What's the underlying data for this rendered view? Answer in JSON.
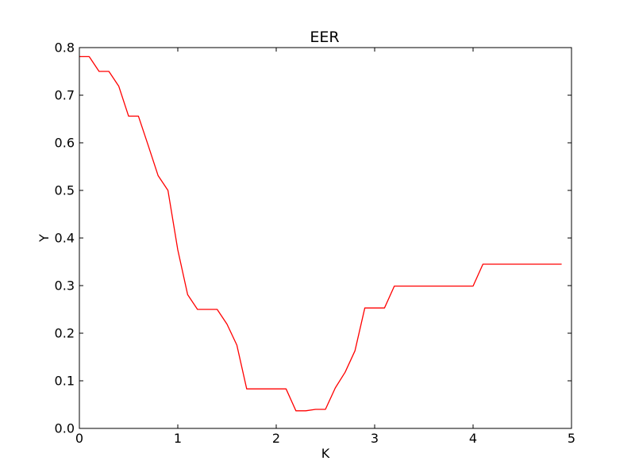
{
  "chart_data": {
    "type": "line",
    "title": "EER",
    "xlabel": "K",
    "ylabel": "Y",
    "xlim": [
      0,
      5
    ],
    "ylim": [
      0,
      0.8
    ],
    "grid": false,
    "x_ticks": [
      0,
      1,
      2,
      3,
      4,
      5
    ],
    "x_tick_labels": [
      "0",
      "1",
      "2",
      "3",
      "4",
      "5"
    ],
    "y_ticks": [
      0,
      0.1,
      0.2,
      0.3,
      0.4,
      0.5,
      0.6,
      0.7,
      0.8
    ],
    "y_tick_labels": [
      "0.0",
      "0.1",
      "0.2",
      "0.3",
      "0.4",
      "0.5",
      "0.6",
      "0.7",
      "0.8"
    ],
    "series": [
      {
        "color": "#ff0000",
        "x": [
          0,
          0.1,
          0.2,
          0.3,
          0.4,
          0.5,
          0.6,
          0.7,
          0.8,
          0.9,
          1.0,
          1.1,
          1.2,
          1.3,
          1.4,
          1.5,
          1.6,
          1.7,
          1.8,
          1.9,
          2.0,
          2.1,
          2.2,
          2.3,
          2.4,
          2.5,
          2.6,
          2.7,
          2.8,
          2.9,
          3.0,
          3.1,
          3.2,
          3.3,
          3.4,
          3.5,
          3.6,
          3.7,
          3.8,
          3.9,
          4.0,
          4.1,
          4.2,
          4.3,
          4.4,
          4.5,
          4.6,
          4.7,
          4.8,
          4.9
        ],
        "y": [
          0.781,
          0.781,
          0.75,
          0.75,
          0.719,
          0.656,
          0.656,
          0.594,
          0.531,
          0.5,
          0.375,
          0.281,
          0.25,
          0.25,
          0.25,
          0.219,
          0.175,
          0.083,
          0.083,
          0.083,
          0.083,
          0.083,
          0.037,
          0.037,
          0.04,
          0.04,
          0.085,
          0.118,
          0.163,
          0.253,
          0.253,
          0.253,
          0.299,
          0.299,
          0.299,
          0.299,
          0.299,
          0.299,
          0.299,
          0.299,
          0.299,
          0.345,
          0.345,
          0.345,
          0.345,
          0.345,
          0.345,
          0.345,
          0.345,
          0.345
        ]
      }
    ]
  }
}
